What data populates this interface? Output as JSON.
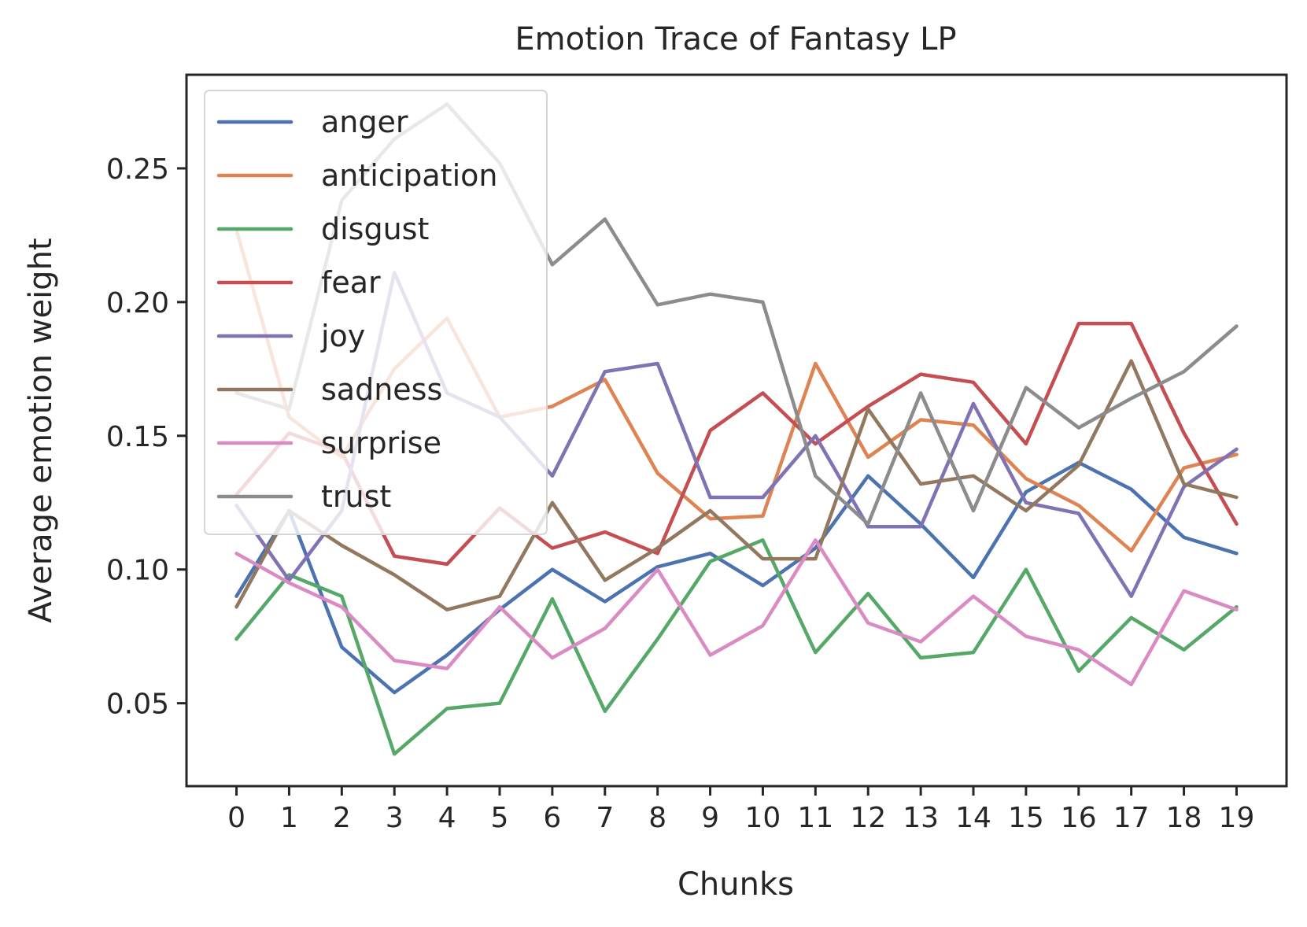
{
  "chart_data": {
    "type": "line",
    "title": "Emotion Trace of Fantasy LP",
    "xlabel": "Chunks",
    "ylabel": "Average emotion weight",
    "x": [
      0,
      1,
      2,
      3,
      4,
      5,
      6,
      7,
      8,
      9,
      10,
      11,
      12,
      13,
      14,
      15,
      16,
      17,
      18,
      19
    ],
    "x_tick_labels": [
      "0",
      "1",
      "2",
      "3",
      "4",
      "5",
      "6",
      "7",
      "8",
      "9",
      "10",
      "11",
      "12",
      "13",
      "14",
      "15",
      "16",
      "17",
      "18",
      "19"
    ],
    "y_ticks": [
      0.05,
      0.1,
      0.15,
      0.2,
      0.25
    ],
    "y_tick_labels": [
      "0.05",
      "0.10",
      "0.15",
      "0.20",
      "0.25"
    ],
    "xlim": [
      -0.95,
      19.95
    ],
    "ylim": [
      0.019,
      0.285
    ],
    "grid": false,
    "legend_position": "upper-left",
    "series": [
      {
        "name": "anger",
        "color": "#4c72b0",
        "values": [
          0.09,
          0.122,
          0.071,
          0.054,
          0.068,
          0.085,
          0.1,
          0.088,
          0.101,
          0.106,
          0.094,
          0.108,
          0.135,
          0.117,
          0.097,
          0.129,
          0.14,
          0.13,
          0.112,
          0.106
        ]
      },
      {
        "name": "anticipation",
        "color": "#dd8452",
        "values": [
          0.227,
          0.157,
          0.142,
          0.175,
          0.194,
          0.157,
          0.161,
          0.171,
          0.136,
          0.119,
          0.12,
          0.177,
          0.142,
          0.156,
          0.154,
          0.134,
          0.124,
          0.107,
          0.138,
          0.143
        ]
      },
      {
        "name": "disgust",
        "color": "#55a868",
        "values": [
          0.074,
          0.098,
          0.09,
          0.031,
          0.048,
          0.05,
          0.089,
          0.047,
          0.074,
          0.103,
          0.111,
          0.069,
          0.091,
          0.067,
          0.069,
          0.1,
          0.062,
          0.082,
          0.07,
          0.086
        ]
      },
      {
        "name": "fear",
        "color": "#c44e52",
        "values": [
          0.128,
          0.151,
          0.144,
          0.105,
          0.102,
          0.123,
          0.108,
          0.114,
          0.106,
          0.152,
          0.166,
          0.147,
          0.161,
          0.173,
          0.17,
          0.147,
          0.192,
          0.192,
          0.151,
          0.117
        ]
      },
      {
        "name": "joy",
        "color": "#8172b3",
        "values": [
          0.124,
          0.096,
          0.122,
          0.211,
          0.166,
          0.157,
          0.135,
          0.174,
          0.177,
          0.127,
          0.127,
          0.15,
          0.116,
          0.116,
          0.162,
          0.125,
          0.121,
          0.09,
          0.131,
          0.145
        ]
      },
      {
        "name": "sadness",
        "color": "#937860",
        "values": [
          0.086,
          0.122,
          0.109,
          0.098,
          0.085,
          0.09,
          0.125,
          0.096,
          0.108,
          0.122,
          0.104,
          0.104,
          0.16,
          0.132,
          0.135,
          0.122,
          0.139,
          0.178,
          0.132,
          0.127
        ]
      },
      {
        "name": "surprise",
        "color": "#da8bc3",
        "values": [
          0.106,
          0.095,
          0.086,
          0.066,
          0.063,
          0.086,
          0.067,
          0.078,
          0.1,
          0.068,
          0.079,
          0.111,
          0.08,
          0.073,
          0.09,
          0.075,
          0.07,
          0.057,
          0.092,
          0.085
        ]
      },
      {
        "name": "trust",
        "color": "#8c8c8c",
        "values": [
          0.166,
          0.16,
          0.238,
          0.261,
          0.274,
          0.252,
          0.214,
          0.231,
          0.199,
          0.203,
          0.2,
          0.135,
          0.117,
          0.166,
          0.122,
          0.168,
          0.153,
          0.164,
          0.174,
          0.191
        ]
      }
    ]
  }
}
